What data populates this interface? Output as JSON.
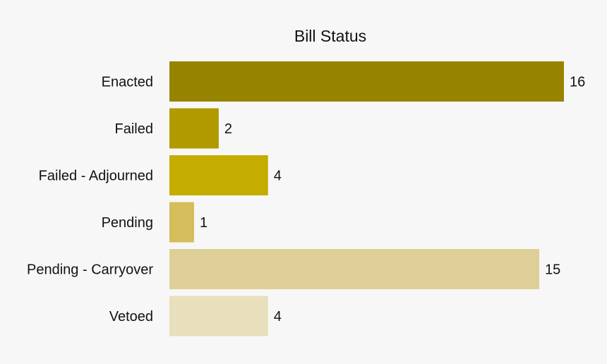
{
  "chart_data": {
    "type": "bar",
    "orientation": "horizontal",
    "title": "Bill Status",
    "xlabel": "",
    "ylabel": "",
    "categories": [
      "Enacted",
      "Failed",
      "Failed - Adjourned",
      "Pending",
      "Pending - Carryover",
      "Vetoed"
    ],
    "values": [
      16,
      2,
      4,
      1,
      15,
      4
    ],
    "colors": [
      "#968400",
      "#b09a00",
      "#c4ad00",
      "#d4bd5a",
      "#decf98",
      "#e8dfbc"
    ],
    "xlim": [
      0,
      16
    ],
    "grid": false,
    "legend": "none"
  }
}
